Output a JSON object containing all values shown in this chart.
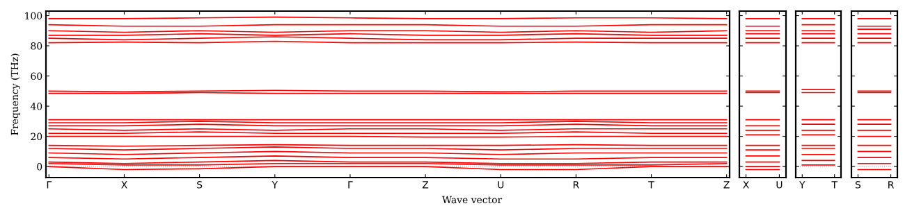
{
  "chart_data": [
    {
      "type": "line",
      "ylabel": "Frequency (THz)",
      "xlabel": "Wave vector",
      "categories": [
        "Γ",
        "X",
        "S",
        "Y",
        "Γ",
        "Z",
        "U",
        "R",
        "T",
        "Z"
      ],
      "ylim": [
        -7.3,
        103
      ],
      "yticks": [
        0,
        20,
        40,
        60,
        80,
        100
      ],
      "grid": false,
      "marker": "none",
      "line_style": "solid",
      "ref_lines": [
        {
          "axis": "y",
          "value": 0,
          "color": "#aaaaaa",
          "line_style": "dotted"
        }
      ],
      "series": [
        {
          "color": "#ff0000",
          "values": [
            0,
            -2,
            -1.5,
            0,
            0,
            0,
            -2,
            -2,
            0,
            0
          ]
        },
        {
          "color": "#ff0000",
          "values": [
            2,
            1,
            1,
            2,
            2,
            2,
            1,
            1,
            1,
            2
          ]
        },
        {
          "color": "#ff0000",
          "values": [
            3,
            2,
            3,
            4,
            3,
            3,
            2,
            2,
            3,
            3
          ]
        },
        {
          "color": "#ff0000",
          "values": [
            6,
            5,
            6,
            7,
            6,
            6,
            5,
            5,
            6,
            6
          ]
        },
        {
          "color": "#ff0000",
          "values": [
            9,
            8,
            9,
            10,
            9,
            9,
            8,
            9,
            9,
            9
          ]
        },
        {
          "color": "#ff0000",
          "values": [
            12,
            11,
            12,
            13,
            12,
            12,
            11,
            12,
            12,
            12
          ]
        },
        {
          "color": "#ff0000",
          "values": [
            14,
            13.5,
            14,
            14.5,
            14,
            14,
            14,
            14.5,
            14,
            14
          ]
        },
        {
          "color": "#ff0000",
          "values": [
            20,
            20,
            20,
            20,
            20,
            19.5,
            19.5,
            20,
            20,
            20
          ]
        },
        {
          "color": "#ff0000",
          "values": [
            22,
            22,
            23,
            22,
            22,
            22,
            22,
            23,
            22,
            22
          ]
        },
        {
          "color": "#ff0000",
          "values": [
            25,
            24,
            25,
            24,
            25,
            25,
            24,
            25,
            25,
            25
          ]
        },
        {
          "color": "#ff0000",
          "values": [
            27,
            27,
            28,
            27,
            27,
            27,
            27,
            28,
            27,
            27
          ]
        },
        {
          "color": "#ff0000",
          "values": [
            29,
            29,
            30,
            29,
            29,
            29,
            29,
            30,
            29,
            29
          ]
        },
        {
          "color": "#ff0000",
          "values": [
            31,
            31,
            31,
            31,
            31,
            31,
            31,
            31,
            31,
            31
          ]
        },
        {
          "color": "#ff0000",
          "values": [
            48.5,
            48.5,
            49,
            48.5,
            48.5,
            48.5,
            48.5,
            48.5,
            48.5,
            48.5
          ]
        },
        {
          "color": "#ff0000",
          "values": [
            50,
            49.5,
            50,
            50.5,
            50,
            50,
            49.5,
            50,
            50,
            50
          ]
        },
        {
          "color": "#ff0000",
          "values": [
            82,
            82.5,
            82,
            83,
            82,
            82,
            82,
            82.5,
            82,
            82
          ]
        },
        {
          "color": "#ff0000",
          "values": [
            85,
            84,
            85,
            86,
            85,
            84,
            84,
            85,
            85,
            85
          ]
        },
        {
          "color": "#ff0000",
          "values": [
            87,
            87,
            88,
            87,
            88,
            87,
            87,
            88,
            87,
            87
          ]
        },
        {
          "color": "#ff0000",
          "values": [
            90,
            89,
            90,
            89,
            90,
            90,
            89,
            90,
            89,
            90
          ]
        },
        {
          "color": "#ff0000",
          "values": [
            94,
            93,
            93,
            94,
            94,
            94,
            93,
            93,
            94,
            94
          ]
        },
        {
          "color": "#ff0000",
          "values": [
            98,
            98,
            98.5,
            99,
            98.5,
            98,
            98,
            98.5,
            98.5,
            98
          ]
        }
      ]
    },
    {
      "type": "line",
      "categories": [
        "X",
        "U"
      ],
      "ylim": [
        -7.3,
        103
      ],
      "yticks": [
        0,
        20,
        40,
        60,
        80,
        100
      ],
      "tick_labels": "x",
      "grid": false,
      "marker": "none",
      "line_style": "solid",
      "ref_lines": [
        {
          "axis": "y",
          "value": 0,
          "color": "#aaaaaa",
          "line_style": "dotted"
        }
      ],
      "series": [
        {
          "color": "#ff0000",
          "values": [
            -2,
            -2
          ]
        },
        {
          "color": "#ff0000",
          "values": [
            0,
            0
          ]
        },
        {
          "color": "#ff0000",
          "values": [
            3,
            3
          ]
        },
        {
          "color": "#ff0000",
          "values": [
            7,
            7
          ]
        },
        {
          "color": "#ff0000",
          "values": [
            11,
            11
          ]
        },
        {
          "color": "#ff0000",
          "values": [
            14,
            14
          ]
        },
        {
          "color": "#ff0000",
          "values": [
            21,
            21
          ]
        },
        {
          "color": "#ff0000",
          "values": [
            24,
            24
          ]
        },
        {
          "color": "#ff0000",
          "values": [
            27,
            27
          ]
        },
        {
          "color": "#ff0000",
          "values": [
            31,
            31
          ]
        },
        {
          "color": "#ff0000",
          "values": [
            49,
            49
          ]
        },
        {
          "color": "#ff0000",
          "values": [
            50,
            50
          ]
        },
        {
          "color": "#ff0000",
          "values": [
            82,
            82
          ]
        },
        {
          "color": "#ff0000",
          "values": [
            85,
            85
          ]
        },
        {
          "color": "#ff0000",
          "values": [
            88,
            88
          ]
        },
        {
          "color": "#ff0000",
          "values": [
            90,
            90
          ]
        },
        {
          "color": "#ff0000",
          "values": [
            93,
            93
          ]
        },
        {
          "color": "#ff0000",
          "values": [
            98,
            98
          ]
        }
      ]
    },
    {
      "type": "line",
      "categories": [
        "Y",
        "T"
      ],
      "ylim": [
        -7.3,
        103
      ],
      "yticks": [
        0,
        20,
        40,
        60,
        80,
        100
      ],
      "tick_labels": "x",
      "grid": false,
      "marker": "none",
      "line_style": "solid",
      "ref_lines": [
        {
          "axis": "y",
          "value": 0,
          "color": "#aaaaaa",
          "line_style": "dotted"
        }
      ],
      "series": [
        {
          "color": "#ff0000",
          "values": [
            1,
            1
          ]
        },
        {
          "color": "#ff0000",
          "values": [
            4,
            4
          ]
        },
        {
          "color": "#ff0000",
          "values": [
            8,
            8
          ]
        },
        {
          "color": "#ff0000",
          "values": [
            12,
            12
          ]
        },
        {
          "color": "#ff0000",
          "values": [
            14,
            14
          ]
        },
        {
          "color": "#ff0000",
          "values": [
            21,
            21
          ]
        },
        {
          "color": "#ff0000",
          "values": [
            24,
            24
          ]
        },
        {
          "color": "#ff0000",
          "values": [
            28,
            28
          ]
        },
        {
          "color": "#ff0000",
          "values": [
            31,
            31
          ]
        },
        {
          "color": "#ff0000",
          "values": [
            49,
            49
          ]
        },
        {
          "color": "#ff0000",
          "values": [
            51,
            51
          ]
        },
        {
          "color": "#ff0000",
          "values": [
            82,
            82
          ]
        },
        {
          "color": "#ff0000",
          "values": [
            85,
            85
          ]
        },
        {
          "color": "#ff0000",
          "values": [
            88,
            88
          ]
        },
        {
          "color": "#ff0000",
          "values": [
            90,
            90
          ]
        },
        {
          "color": "#ff0000",
          "values": [
            94,
            94
          ]
        },
        {
          "color": "#ff0000",
          "values": [
            98,
            98
          ]
        }
      ]
    },
    {
      "type": "line",
      "categories": [
        "S",
        "R"
      ],
      "ylim": [
        -7.3,
        103
      ],
      "yticks": [
        0,
        20,
        40,
        60,
        80,
        100
      ],
      "tick_labels": "x",
      "grid": false,
      "marker": "none",
      "line_style": "solid",
      "ref_lines": [
        {
          "axis": "y",
          "value": 0,
          "color": "#aaaaaa",
          "line_style": "dotted"
        }
      ],
      "series": [
        {
          "color": "#ff0000",
          "values": [
            -2,
            -2
          ]
        },
        {
          "color": "#ff0000",
          "values": [
            2,
            2
          ]
        },
        {
          "color": "#ff0000",
          "values": [
            6,
            6
          ]
        },
        {
          "color": "#ff0000",
          "values": [
            10,
            10
          ]
        },
        {
          "color": "#ff0000",
          "values": [
            14,
            14
          ]
        },
        {
          "color": "#ff0000",
          "values": [
            20,
            20
          ]
        },
        {
          "color": "#ff0000",
          "values": [
            24,
            24
          ]
        },
        {
          "color": "#ff0000",
          "values": [
            28,
            28
          ]
        },
        {
          "color": "#ff0000",
          "values": [
            31,
            31
          ]
        },
        {
          "color": "#ff0000",
          "values": [
            49,
            49
          ]
        },
        {
          "color": "#ff0000",
          "values": [
            50,
            50
          ]
        },
        {
          "color": "#ff0000",
          "values": [
            82,
            82
          ]
        },
        {
          "color": "#ff0000",
          "values": [
            85,
            85
          ]
        },
        {
          "color": "#ff0000",
          "values": [
            88,
            88
          ]
        },
        {
          "color": "#ff0000",
          "values": [
            91,
            91
          ]
        },
        {
          "color": "#ff0000",
          "values": [
            93,
            93
          ]
        },
        {
          "color": "#ff0000",
          "values": [
            98,
            98
          ]
        }
      ]
    }
  ]
}
